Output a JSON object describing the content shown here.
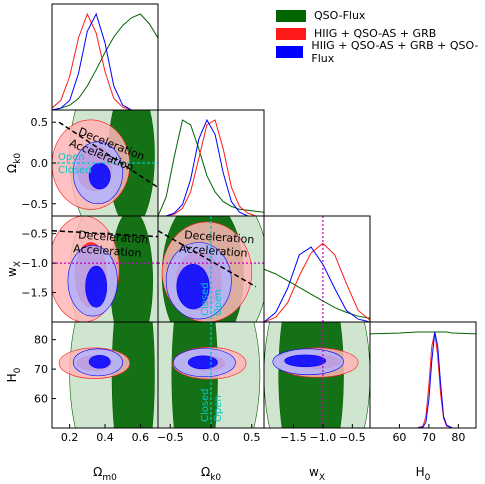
{
  "chart_data": {
    "type": "triangle-corner-plot",
    "parameters": [
      {
        "key": "om",
        "xlabel": "Ω_{m0}",
        "ylabel": "",
        "range": [
          0.1,
          0.7
        ],
        "ticks": [
          0.2,
          0.4,
          0.6
        ],
        "tick_labels": [
          "0.2",
          "0.4",
          "0.6"
        ]
      },
      {
        "key": "ok",
        "xlabel": "Ω_{k0}",
        "ylabel": "Ω_{k0}",
        "range": [
          -0.65,
          0.65
        ],
        "ticks": [
          -0.5,
          0.0,
          0.5
        ],
        "tick_labels": [
          "−0.5",
          "0.0",
          "0.5"
        ]
      },
      {
        "key": "wx",
        "xlabel": "w_X",
        "ylabel": "w_X",
        "range": [
          -2.0,
          -0.2
        ],
        "ticks": [
          -1.5,
          -1.0,
          -0.5
        ],
        "tick_labels": [
          "−1.5",
          "−1.0",
          "−0.5"
        ]
      },
      {
        "key": "h0",
        "xlabel": "H_0",
        "ylabel": "H_0",
        "range": [
          50,
          86
        ],
        "ticks": [
          60,
          70,
          80
        ],
        "tick_labels": [
          "60",
          "70",
          "80"
        ]
      }
    ],
    "series": [
      {
        "name": "QSO-Flux",
        "color": "#006400",
        "inner": "#006400",
        "outer": "#aacfaa"
      },
      {
        "name": "HIIG + QSO-AS + GRB",
        "color": "#ff1a1a",
        "inner": "#ff1a1a",
        "outer": "#ffb6b6"
      },
      {
        "name": "HIIG + QSO-AS + GRB + QSO-Flux",
        "color": "#0000ff",
        "inner": "#0000ff",
        "outer": "#b3b3ff"
      }
    ],
    "reference_lines": {
      "ok": 0.0,
      "wx": -1.0
    },
    "annotations": {
      "deceleration": "Deceleration",
      "acceleration": "Acceleration",
      "open": "Open",
      "closed": "Closed"
    },
    "marginals": {
      "om": {
        "x": [
          0.1,
          0.15,
          0.2,
          0.25,
          0.3,
          0.35,
          0.4,
          0.45,
          0.5,
          0.55,
          0.6,
          0.65,
          0.7
        ],
        "QSO-Flux": [
          0.0,
          0.02,
          0.05,
          0.12,
          0.25,
          0.42,
          0.6,
          0.76,
          0.88,
          0.96,
          1.0,
          0.9,
          0.75
        ],
        "HIIG + QSO-AS + GRB": [
          0.02,
          0.1,
          0.35,
          0.75,
          1.0,
          0.8,
          0.4,
          0.12,
          0.03,
          0.0,
          0.0,
          0.0,
          0.0
        ],
        "HIIG + QSO-AS + GRB + QSO-Flux": [
          0.0,
          0.02,
          0.1,
          0.38,
          0.82,
          1.0,
          0.7,
          0.25,
          0.05,
          0.0,
          0.0,
          0.0,
          0.0
        ]
      },
      "ok": {
        "x": [
          -0.65,
          -0.55,
          -0.45,
          -0.35,
          -0.25,
          -0.15,
          -0.05,
          0.05,
          0.15,
          0.25,
          0.35,
          0.45,
          0.55,
          0.65
        ],
        "QSO-Flux": [
          0.0,
          0.2,
          0.62,
          1.0,
          0.95,
          0.7,
          0.42,
          0.25,
          0.15,
          0.1,
          0.07,
          0.06,
          0.05,
          0.04
        ],
        "HIIG + QSO-AS + GRB": [
          0.0,
          0.0,
          0.02,
          0.08,
          0.25,
          0.6,
          0.95,
          1.0,
          0.7,
          0.3,
          0.1,
          0.03,
          0.0,
          0.0
        ],
        "HIIG + QSO-AS + GRB + QSO-Flux": [
          0.0,
          0.0,
          0.03,
          0.12,
          0.38,
          0.8,
          1.0,
          0.85,
          0.45,
          0.15,
          0.04,
          0.0,
          0.0,
          0.0
        ]
      },
      "wx": {
        "x": [
          -2.0,
          -1.8,
          -1.6,
          -1.4,
          -1.2,
          -1.0,
          -0.8,
          -0.6,
          -0.4,
          -0.2
        ],
        "QSO-Flux": [
          0.55,
          0.5,
          0.43,
          0.36,
          0.29,
          0.22,
          0.15,
          0.1,
          0.06,
          0.04
        ],
        "HIIG + QSO-AS + GRB": [
          0.0,
          0.05,
          0.2,
          0.48,
          0.72,
          0.82,
          0.7,
          0.4,
          0.12,
          0.02
        ],
        "HIIG + QSO-AS + GRB + QSO-Flux": [
          0.0,
          0.1,
          0.35,
          0.7,
          0.78,
          0.6,
          0.35,
          0.12,
          0.03,
          0.0
        ]
      },
      "h0": {
        "x": [
          50,
          60,
          66,
          68,
          69,
          70,
          71,
          72,
          73,
          74,
          75,
          76,
          78,
          86
        ],
        "QSO-Flux": [
          0.98,
          0.99,
          1.0,
          1.0,
          1.0,
          1.0,
          1.0,
          1.0,
          1.0,
          1.0,
          1.0,
          1.0,
          0.99,
          0.98
        ],
        "HIIG + QSO-AS + GRB": [
          0.0,
          0.0,
          0.0,
          0.02,
          0.12,
          0.45,
          0.85,
          1.0,
          0.75,
          0.35,
          0.1,
          0.02,
          0.0,
          0.0
        ],
        "HIIG + QSO-AS + GRB + QSO-Flux": [
          0.0,
          0.0,
          0.0,
          0.01,
          0.06,
          0.3,
          0.7,
          1.0,
          0.85,
          0.45,
          0.12,
          0.03,
          0.0,
          0.0
        ]
      }
    },
    "contours_2d": {
      "om-ok": {
        "QSO-Flux": {
          "inner": {
            "c": [
              0.55,
              0.1
            ],
            "r": [
              0.13,
              0.9
            ]
          },
          "outer": {
            "c": [
              0.5,
              0.1
            ],
            "r": [
              0.3,
              1.2
            ]
          }
        },
        "HIIG + QSO-AS + GRB": {
          "inner": {
            "c": [
              0.34,
              -0.06
            ],
            "r": [
              0.1,
              0.28
            ]
          },
          "outer": {
            "c": [
              0.32,
              -0.02
            ],
            "r": [
              0.22,
              0.55
            ]
          }
        },
        "HIIG + QSO-AS + GRB + QSO-Flux": {
          "inner": {
            "c": [
              0.37,
              -0.16
            ],
            "r": [
              0.06,
              0.16
            ]
          },
          "outer": {
            "c": [
              0.36,
              -0.12
            ],
            "r": [
              0.14,
              0.38
            ]
          }
        }
      },
      "om-wx": {
        "QSO-Flux": {
          "inner": {
            "c": [
              0.55,
              -1.3
            ],
            "r": [
              0.12,
              1.2
            ]
          },
          "outer": {
            "c": [
              0.5,
              -1.2
            ],
            "r": [
              0.3,
              1.5
            ]
          }
        },
        "HIIG + QSO-AS + GRB": {
          "inner": {
            "c": [
              0.32,
              -1.2
            ],
            "r": [
              0.09,
              0.55
            ]
          },
          "outer": {
            "c": [
              0.28,
              -1.1
            ],
            "r": [
              0.2,
              0.9
            ]
          }
        },
        "HIIG + QSO-AS + GRB + QSO-Flux": {
          "inner": {
            "c": [
              0.35,
              -1.4
            ],
            "r": [
              0.06,
              0.35
            ]
          },
          "outer": {
            "c": [
              0.33,
              -1.3
            ],
            "r": [
              0.14,
              0.6
            ]
          }
        }
      },
      "om-h0": {
        "QSO-Flux": {
          "inner": {
            "c": [
              0.56,
              68
            ],
            "r": [
              0.12,
              40
            ]
          },
          "outer": {
            "c": [
              0.5,
              68
            ],
            "r": [
              0.3,
              40
            ]
          }
        },
        "HIIG + QSO-AS + GRB": {
          "inner": {
            "c": [
              0.34,
              72
            ],
            "r": [
              0.1,
              2.6
            ]
          },
          "outer": {
            "c": [
              0.34,
              72
            ],
            "r": [
              0.2,
              5.2
            ]
          }
        },
        "HIIG + QSO-AS + GRB + QSO-Flux": {
          "inner": {
            "c": [
              0.37,
              72.5
            ],
            "r": [
              0.06,
              2.2
            ]
          },
          "outer": {
            "c": [
              0.36,
              72.3
            ],
            "r": [
              0.14,
              4.6
            ]
          }
        }
      },
      "ok-wx": {
        "QSO-Flux": {
          "inner": {
            "c": [
              -0.1,
              -1.2
            ],
            "r": [
              0.5,
              1.3
            ]
          },
          "outer": {
            "c": [
              -0.05,
              -1.1
            ],
            "r": [
              0.75,
              1.5
            ]
          }
        },
        "HIIG + QSO-AS + GRB": {
          "inner": {
            "c": [
              -0.15,
              -1.3
            ],
            "r": [
              0.28,
              0.5
            ]
          },
          "outer": {
            "c": [
              -0.05,
              -1.15
            ],
            "r": [
              0.55,
              0.85
            ]
          }
        },
        "HIIG + QSO-AS + GRB + QSO-Flux": {
          "inner": {
            "c": [
              -0.22,
              -1.4
            ],
            "r": [
              0.2,
              0.38
            ]
          },
          "outer": {
            "c": [
              -0.15,
              -1.3
            ],
            "r": [
              0.4,
              0.65
            ]
          }
        }
      },
      "ok-h0": {
        "QSO-Flux": {
          "inner": {
            "c": [
              -0.2,
              68
            ],
            "r": [
              0.28,
              40
            ]
          },
          "outer": {
            "c": [
              -0.1,
              68
            ],
            "r": [
              0.7,
              40
            ]
          }
        },
        "HIIG + QSO-AS + GRB": {
          "inner": {
            "c": [
              -0.05,
              72
            ],
            "r": [
              0.22,
              2.6
            ]
          },
          "outer": {
            "c": [
              -0.02,
              72
            ],
            "r": [
              0.45,
              5.4
            ]
          }
        },
        "HIIG + QSO-AS + GRB + QSO-Flux": {
          "inner": {
            "c": [
              -0.1,
              72.3
            ],
            "r": [
              0.18,
              2.2
            ]
          },
          "outer": {
            "c": [
              -0.08,
              72.2
            ],
            "r": [
              0.38,
              4.8
            ]
          }
        }
      },
      "wx-h0": {
        "QSO-Flux": {
          "inner": {
            "c": [
              -1.2,
              68
            ],
            "r": [
              0.55,
              40
            ]
          },
          "outer": {
            "c": [
              -1.1,
              68
            ],
            "r": [
              0.9,
              40
            ]
          }
        },
        "HIIG + QSO-AS + GRB": {
          "inner": {
            "c": [
              -1.1,
              72.5
            ],
            "r": [
              0.4,
              2.4
            ]
          },
          "outer": {
            "c": [
              -1.1,
              72.2
            ],
            "r": [
              0.7,
              5.0
            ]
          }
        },
        "HIIG + QSO-AS + GRB + QSO-Flux": {
          "inner": {
            "c": [
              -1.3,
              72.8
            ],
            "r": [
              0.35,
              2.0
            ]
          },
          "outer": {
            "c": [
              -1.25,
              72.5
            ],
            "r": [
              0.6,
              4.4
            ]
          }
        }
      }
    }
  }
}
